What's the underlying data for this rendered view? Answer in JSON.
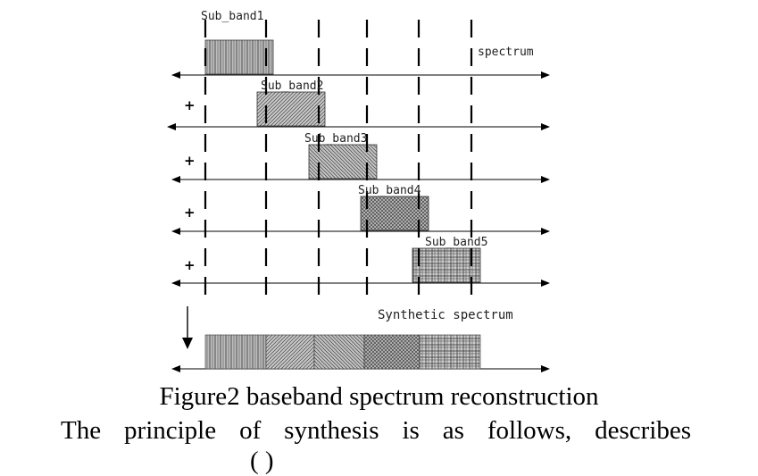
{
  "figure": {
    "spectrum_label": "spectrum",
    "synthetic_label": "Synthetic spectrum",
    "plus_sign": "+",
    "sub_bands": [
      {
        "label": "Sub_band1",
        "pattern": "vertical"
      },
      {
        "label": "Sub_band2",
        "pattern": "diag-right"
      },
      {
        "label": "Sub_band3",
        "pattern": "diag-left"
      },
      {
        "label": "Sub_band4",
        "pattern": "crosshatch"
      },
      {
        "label": "Sub_band5",
        "pattern": "grid"
      }
    ]
  },
  "caption": {
    "title": "Figure2 baseband spectrum reconstruction",
    "body_line": "The principle of synthesis is as follows, describes",
    "partial_line": "( )"
  }
}
